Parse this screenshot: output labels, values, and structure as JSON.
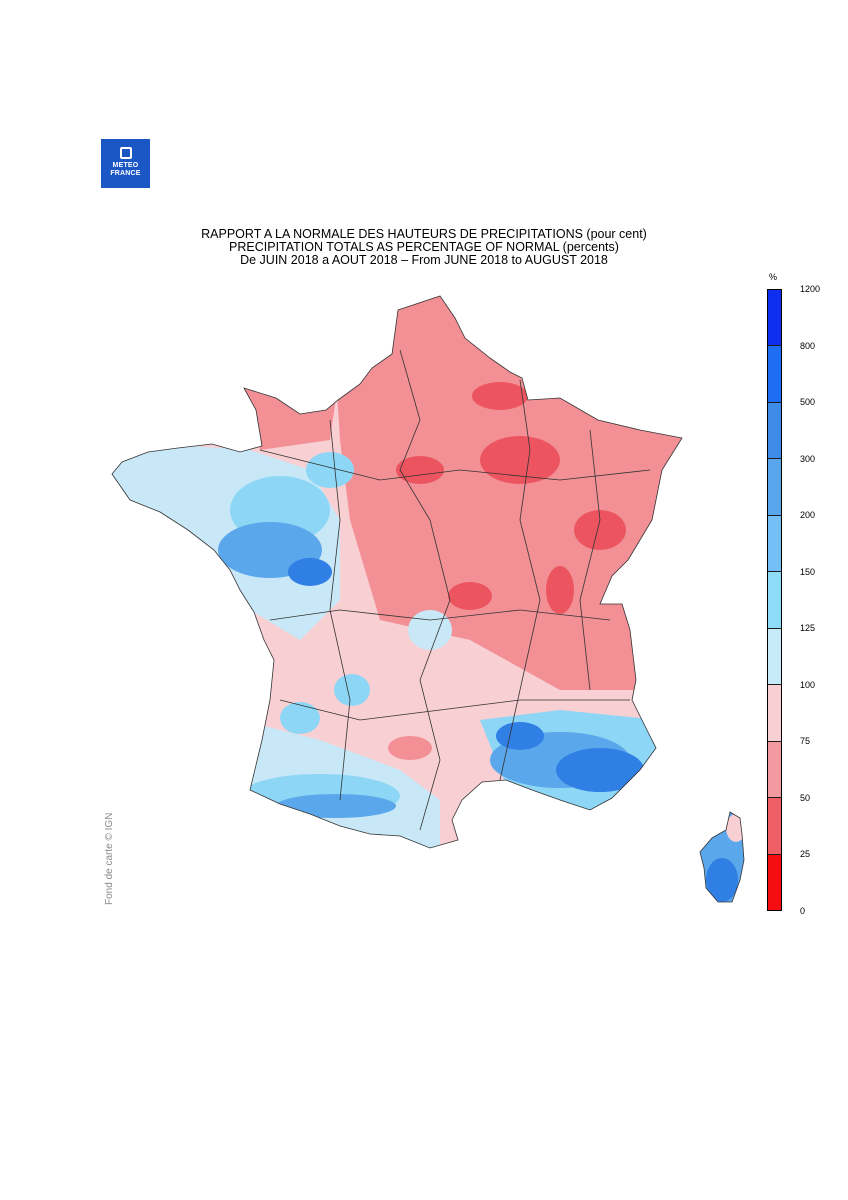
{
  "logo": {
    "line1": "METEO",
    "line2": "FRANCE"
  },
  "title": {
    "line1": "RAPPORT A LA NORMALE DES HAUTEURS DE PRECIPITATIONS (pour cent)",
    "line2": "PRECIPITATION TOTALS AS PERCENTAGE OF NORMAL (percents)",
    "line3": "De JUIN 2018 a AOUT 2018 – From JUNE 2018 to AUGUST 2018"
  },
  "credit": "Fond de carte © IGN",
  "legend": {
    "unit": "%",
    "ticks": [
      "1200",
      "800",
      "500",
      "300",
      "200",
      "150",
      "125",
      "100",
      "75",
      "50",
      "25",
      "0"
    ],
    "colors_top_to_bottom": [
      "#0f2ff0",
      "#1d6ef2",
      "#3f8ce8",
      "#5aa6ec",
      "#74bff5",
      "#8fdcf8",
      "#c7eaf8",
      "#f8d0d3",
      "#f39aa0",
      "#ef5f66",
      "#f60d12"
    ]
  },
  "map": {
    "palette": {
      "red_dark": "#ec5560",
      "red": "#f29096",
      "pink": "#f8cfd3",
      "light_blue": "#c8e8f7",
      "sky": "#8dd6f6",
      "blue": "#5ba7eb",
      "deep_blue": "#2f7fe5",
      "border": "#333333"
    }
  }
}
